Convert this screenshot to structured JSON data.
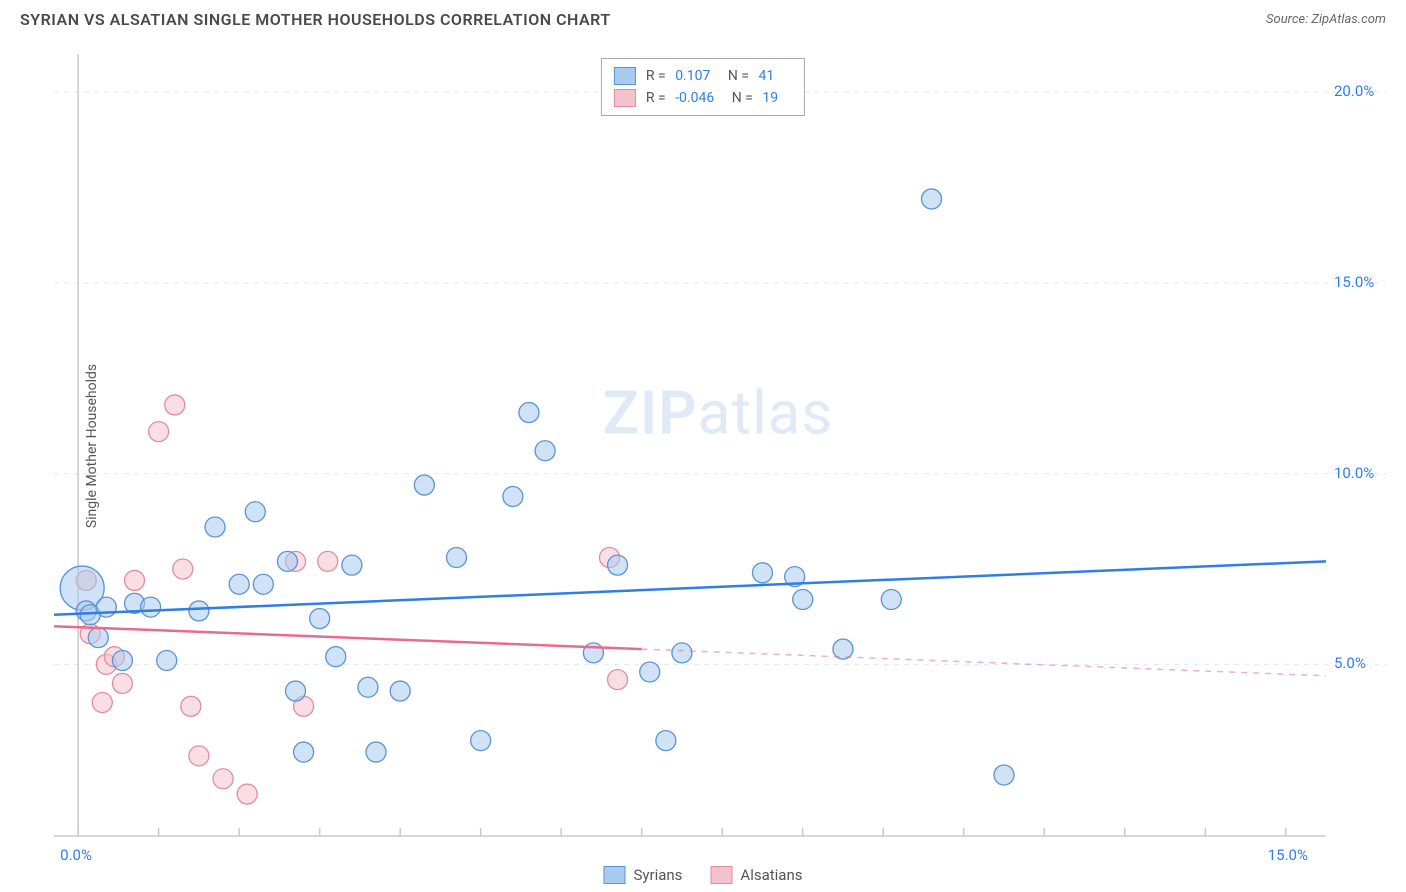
{
  "title": "SYRIAN VS ALSATIAN SINGLE MOTHER HOUSEHOLDS CORRELATION CHART",
  "source_label": "Source: ZipAtlas.com",
  "watermark": "ZIPatlas",
  "ylabel": "Single Mother Households",
  "series": [
    {
      "key": "syrians",
      "label": "Syrians",
      "color_fill": "#a9cbef",
      "color_stroke": "#5a93d6",
      "r_value": "0.107",
      "n_value": "41"
    },
    {
      "key": "alsatians",
      "label": "Alsatians",
      "color_fill": "#f4c2cc",
      "color_stroke": "#e38ca0",
      "r_value": "-0.046",
      "n_value": "19"
    }
  ],
  "chart": {
    "background": "#ffffff",
    "grid_color": "#e7e7e7",
    "axis_color": "#c9c9c9",
    "xlim": [
      -0.3,
      15.5
    ],
    "ylim": [
      0.5,
      21.0
    ],
    "xticks": [
      0.0,
      1.0,
      2.0,
      3.0,
      4.0,
      5.0,
      6.0,
      7.0,
      8.0,
      9.0,
      10.0,
      11.0,
      12.0,
      13.0,
      14.0,
      15.0
    ],
    "xtick_labels": {
      "0.0": "0.0%",
      "15.0": "15.0%"
    },
    "yticks": [
      5.0,
      10.0,
      15.0,
      20.0
    ],
    "ytick_labels": {
      "5.0": "5.0%",
      "10.0": "10.0%",
      "15.0": "15.0%",
      "20.0": "20.0%"
    },
    "marker_radius": 10,
    "marker_opacity": 0.55,
    "line_width": 2.5,
    "trend_lines": [
      {
        "series": "syrians",
        "y_start": 6.3,
        "y_end": 7.7,
        "solid_until": 15.5,
        "color": "#2f7ee6"
      },
      {
        "series": "alsatians",
        "y_start": 6.0,
        "y_end": 4.7,
        "solid_until": 7.0,
        "color": "#e76b8a"
      }
    ],
    "points_syrians": [
      {
        "x": 0.05,
        "y": 7.0,
        "r": 22
      },
      {
        "x": 0.1,
        "y": 6.4
      },
      {
        "x": 0.15,
        "y": 6.3
      },
      {
        "x": 0.25,
        "y": 5.7
      },
      {
        "x": 0.35,
        "y": 6.5
      },
      {
        "x": 0.55,
        "y": 5.1
      },
      {
        "x": 0.7,
        "y": 6.6
      },
      {
        "x": 0.9,
        "y": 6.5
      },
      {
        "x": 1.1,
        "y": 5.1
      },
      {
        "x": 1.5,
        "y": 6.4
      },
      {
        "x": 1.7,
        "y": 8.6
      },
      {
        "x": 2.0,
        "y": 7.1
      },
      {
        "x": 2.2,
        "y": 9.0
      },
      {
        "x": 2.3,
        "y": 7.1
      },
      {
        "x": 2.6,
        "y": 7.7
      },
      {
        "x": 2.7,
        "y": 4.3
      },
      {
        "x": 2.8,
        "y": 2.7
      },
      {
        "x": 3.0,
        "y": 6.2
      },
      {
        "x": 3.2,
        "y": 5.2
      },
      {
        "x": 3.4,
        "y": 7.6
      },
      {
        "x": 3.6,
        "y": 4.4
      },
      {
        "x": 3.7,
        "y": 2.7
      },
      {
        "x": 4.0,
        "y": 4.3
      },
      {
        "x": 4.3,
        "y": 9.7
      },
      {
        "x": 4.7,
        "y": 7.8
      },
      {
        "x": 5.0,
        "y": 3.0
      },
      {
        "x": 5.4,
        "y": 9.4
      },
      {
        "x": 5.6,
        "y": 11.6
      },
      {
        "x": 5.8,
        "y": 10.6
      },
      {
        "x": 6.4,
        "y": 5.3
      },
      {
        "x": 6.7,
        "y": 7.6
      },
      {
        "x": 7.1,
        "y": 4.8
      },
      {
        "x": 7.3,
        "y": 3.0
      },
      {
        "x": 7.5,
        "y": 5.3
      },
      {
        "x": 8.5,
        "y": 7.4
      },
      {
        "x": 8.9,
        "y": 7.3
      },
      {
        "x": 9.0,
        "y": 6.7
      },
      {
        "x": 9.5,
        "y": 5.4
      },
      {
        "x": 10.1,
        "y": 6.7
      },
      {
        "x": 10.6,
        "y": 17.2
      },
      {
        "x": 11.5,
        "y": 2.1
      }
    ],
    "points_alsatians": [
      {
        "x": 0.1,
        "y": 7.2
      },
      {
        "x": 0.15,
        "y": 5.8
      },
      {
        "x": 0.3,
        "y": 4.0
      },
      {
        "x": 0.35,
        "y": 5.0
      },
      {
        "x": 0.45,
        "y": 5.2
      },
      {
        "x": 0.55,
        "y": 4.5
      },
      {
        "x": 0.7,
        "y": 7.2
      },
      {
        "x": 1.0,
        "y": 11.1
      },
      {
        "x": 1.2,
        "y": 11.8
      },
      {
        "x": 1.3,
        "y": 7.5
      },
      {
        "x": 1.4,
        "y": 3.9
      },
      {
        "x": 1.5,
        "y": 2.6
      },
      {
        "x": 1.8,
        "y": 2.0
      },
      {
        "x": 2.1,
        "y": 1.6
      },
      {
        "x": 2.7,
        "y": 7.7
      },
      {
        "x": 2.8,
        "y": 3.9
      },
      {
        "x": 3.1,
        "y": 7.7
      },
      {
        "x": 6.6,
        "y": 7.8
      },
      {
        "x": 6.7,
        "y": 4.6
      }
    ]
  }
}
